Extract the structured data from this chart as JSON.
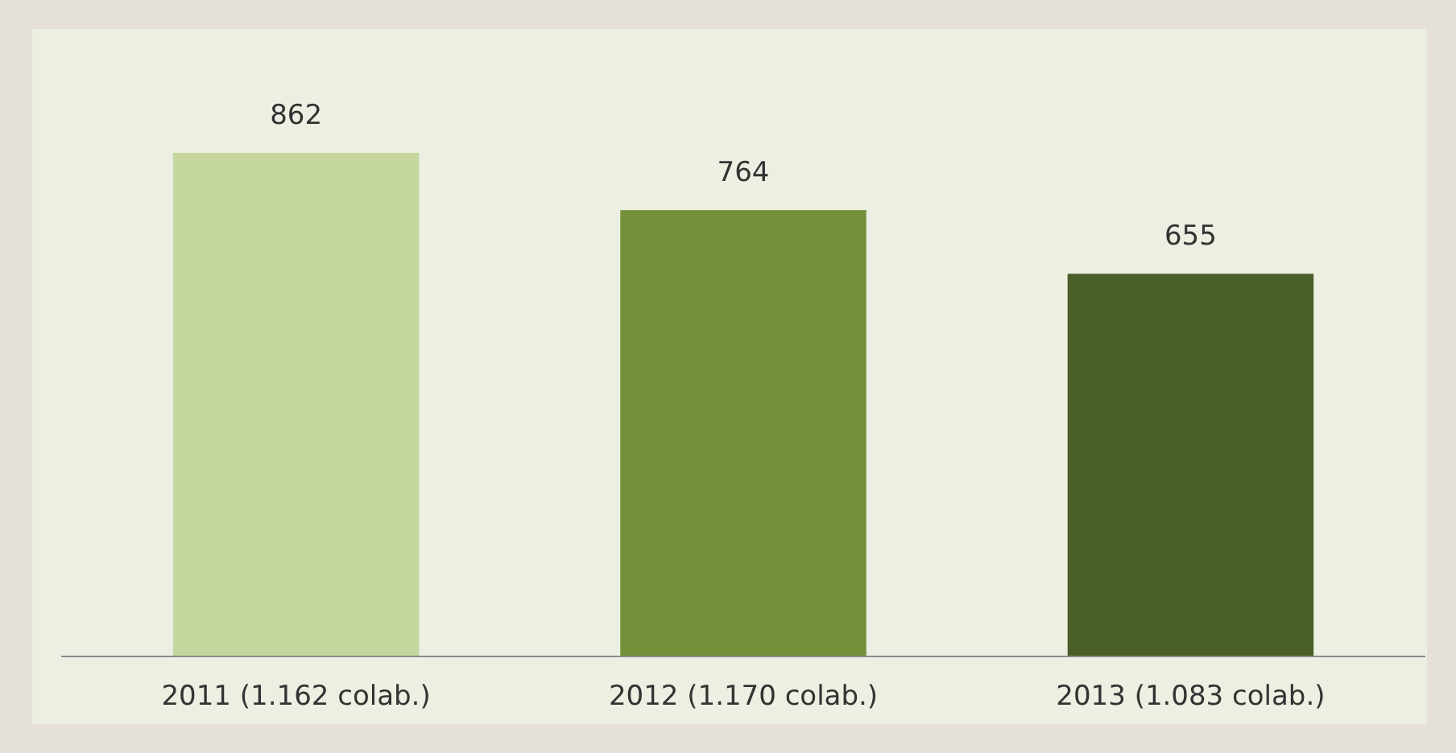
{
  "chart_data": {
    "type": "bar",
    "categories": [
      "2011 (1.162 colab.)",
      "2012 (1.170 colab.)",
      "2013 (1.083 colab.)"
    ],
    "values": [
      862,
      764,
      655
    ],
    "colors": [
      "#c5d69f",
      "#73913a",
      "#4a5e27"
    ],
    "data_labels": true
  }
}
